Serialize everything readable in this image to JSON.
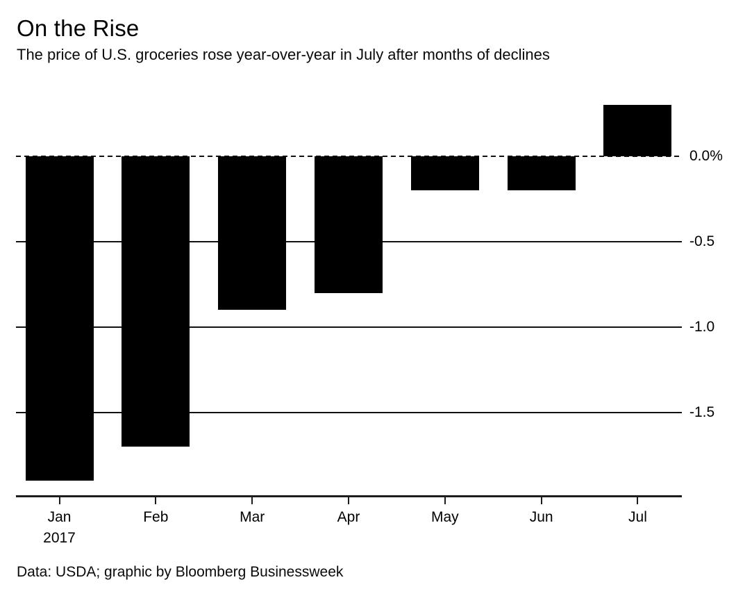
{
  "header": {
    "title": "On the Rise",
    "subtitle": "The price of U.S. groceries rose year-over-year in July after months of declines"
  },
  "footer": {
    "source": "Data: USDA; graphic by Bloomberg Businessweek"
  },
  "chart_data": {
    "type": "bar",
    "title": "On the Rise",
    "subtitle": "The price of U.S. groceries rose year-over-year in July after months of declines",
    "categories": [
      "Jan",
      "Feb",
      "Mar",
      "Apr",
      "May",
      "Jun",
      "Jul"
    ],
    "x_first_tick_sub_label": "2017",
    "values": [
      -1.9,
      -1.7,
      -0.9,
      -0.8,
      -0.2,
      -0.2,
      0.3
    ],
    "unit": "percent, year-over-year",
    "xlabel": "",
    "ylabel": "",
    "ylim": [
      -2.0,
      0.35
    ],
    "y_ticks": [
      {
        "label": "0.0%",
        "value": 0.0,
        "style": "dashed"
      },
      {
        "label": "-0.5",
        "value": -0.5,
        "style": "solid"
      },
      {
        "label": "-1.0",
        "value": -1.0,
        "style": "solid"
      },
      {
        "label": "-1.5",
        "value": -1.5,
        "style": "solid"
      }
    ],
    "grid": "horizontal",
    "legend": "none",
    "bar_color": "#000000",
    "background_color": "#ffffff",
    "source": "Data: USDA; graphic by Bloomberg Businessweek"
  }
}
